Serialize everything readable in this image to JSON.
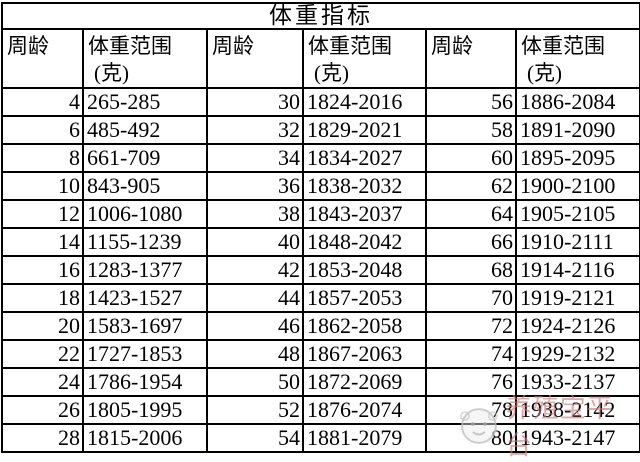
{
  "table": {
    "title": "体重指标",
    "groups": [
      {
        "header_week": "周龄",
        "header_range": "体重范围",
        "header_unit": "(克)",
        "entries": [
          {
            "week": 4,
            "range": "265-285"
          },
          {
            "week": 6,
            "range": "485-492"
          },
          {
            "week": 8,
            "range": "661-709"
          },
          {
            "week": 10,
            "range": "843-905"
          },
          {
            "week": 12,
            "range": "1006-1080"
          },
          {
            "week": 14,
            "range": "1155-1239"
          },
          {
            "week": 16,
            "range": "1283-1377"
          },
          {
            "week": 18,
            "range": "1423-1527"
          },
          {
            "week": 20,
            "range": "1583-1697"
          },
          {
            "week": 22,
            "range": "1727-1853"
          },
          {
            "week": 24,
            "range": "1786-1954"
          },
          {
            "week": 26,
            "range": "1805-1995"
          },
          {
            "week": 28,
            "range": "1815-2006"
          }
        ]
      },
      {
        "header_week": "周龄",
        "header_range": "体重范围",
        "header_unit": "(克)",
        "entries": [
          {
            "week": 30,
            "range": "1824-2016"
          },
          {
            "week": 32,
            "range": "1829-2021"
          },
          {
            "week": 34,
            "range": "1834-2027"
          },
          {
            "week": 36,
            "range": "1838-2032"
          },
          {
            "week": 38,
            "range": "1843-2037"
          },
          {
            "week": 40,
            "range": "1848-2042"
          },
          {
            "week": 42,
            "range": "1853-2048"
          },
          {
            "week": 44,
            "range": "1857-2053"
          },
          {
            "week": 46,
            "range": "1862-2058"
          },
          {
            "week": 48,
            "range": "1867-2063"
          },
          {
            "week": 50,
            "range": "1872-2069"
          },
          {
            "week": 52,
            "range": "1876-2074"
          },
          {
            "week": 54,
            "range": "1881-2079"
          }
        ]
      },
      {
        "header_week": "周龄",
        "header_range": "体重范围",
        "header_unit": "(克)",
        "entries": [
          {
            "week": 56,
            "range": "1886-2084"
          },
          {
            "week": 58,
            "range": "1891-2090"
          },
          {
            "week": 60,
            "range": "1895-2095"
          },
          {
            "week": 62,
            "range": "1900-2100"
          },
          {
            "week": 64,
            "range": "1905-2105"
          },
          {
            "week": 66,
            "range": "1910-2111"
          },
          {
            "week": 68,
            "range": "1914-2116"
          },
          {
            "week": 70,
            "range": "1919-2121"
          },
          {
            "week": 72,
            "range": "1924-2126"
          },
          {
            "week": 74,
            "range": "1929-2132"
          },
          {
            "week": 76,
            "range": "1933-2137"
          },
          {
            "week": 78,
            "range": "1938-2142"
          },
          {
            "week": 80,
            "range": "1943-2147"
          }
        ]
      }
    ]
  },
  "watermark": {
    "text": "养殖宝平台",
    "text_color": "#cb7676",
    "logo": "mascot-face-icon"
  }
}
